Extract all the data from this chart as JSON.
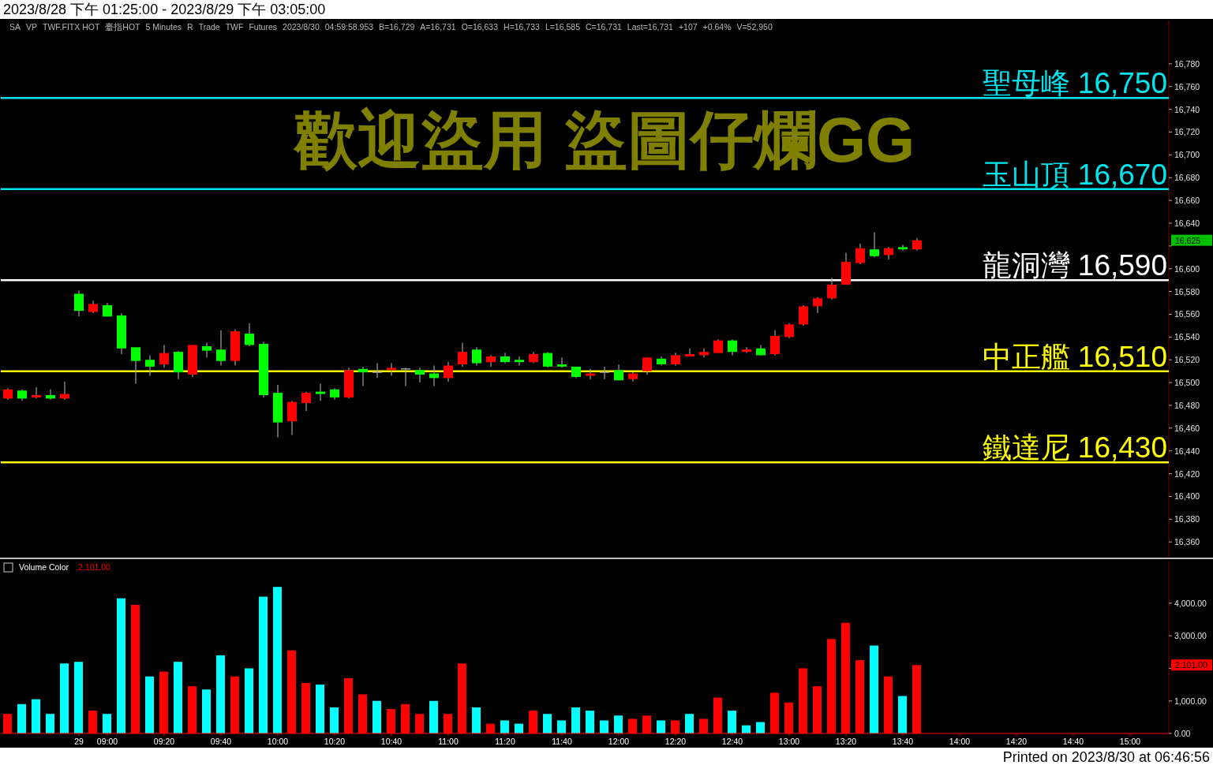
{
  "chart_data": [
    {
      "type": "candlestick",
      "title": "2023/8/28 下午 01:25:00 - 2023/8/29 下午 03:05:00",
      "ohlc": [
        [
          16486,
          16495,
          16485,
          16494
        ],
        [
          16493,
          16494,
          16484,
          16486
        ],
        [
          16487,
          16496,
          16486,
          16489
        ],
        [
          16489,
          16494,
          16485,
          16486
        ],
        [
          16486,
          16501,
          16485,
          16490
        ],
        [
          16578,
          16581,
          16558,
          16563
        ],
        [
          16562,
          16572,
          16561,
          16569
        ],
        [
          16568,
          16570,
          16558,
          16558
        ],
        [
          16559,
          16561,
          16525,
          16530
        ],
        [
          16531,
          16531,
          16499,
          16519
        ],
        [
          16520,
          16524,
          16506,
          16514
        ],
        [
          16516,
          16533,
          16513,
          16526
        ],
        [
          16527,
          16528,
          16503,
          16509
        ],
        [
          16507,
          16533,
          16505,
          16533
        ],
        [
          16532,
          16535,
          16522,
          16528
        ],
        [
          16529,
          16546,
          16515,
          16519
        ],
        [
          16519,
          16547,
          16515,
          16545
        ],
        [
          16543,
          16552,
          16532,
          16533
        ],
        [
          16534,
          16536,
          16487,
          16489
        ],
        [
          16491,
          16498,
          16452,
          16465
        ],
        [
          16466,
          16484,
          16454,
          16483
        ],
        [
          16482,
          16492,
          16475,
          16491
        ],
        [
          16492,
          16499,
          16484,
          16490
        ],
        [
          16494,
          16495,
          16485,
          16487
        ],
        [
          16487,
          16513,
          16486,
          16511
        ],
        [
          16512,
          16514,
          16497,
          16509
        ],
        [
          16509,
          16517,
          16504,
          16509
        ],
        [
          16511,
          16517,
          16506,
          16513
        ],
        [
          16512,
          16513,
          16497,
          16512
        ],
        [
          16511,
          16513,
          16500,
          16507
        ],
        [
          16508,
          16515,
          16497,
          16504
        ],
        [
          16504,
          16518,
          16501,
          16515
        ],
        [
          16516,
          16535,
          16514,
          16527
        ],
        [
          16529,
          16531,
          16515,
          16517
        ],
        [
          16518,
          16524,
          16514,
          16523
        ],
        [
          16523,
          16526,
          16517,
          16518
        ],
        [
          16520,
          16523,
          16515,
          16518
        ],
        [
          16518,
          16527,
          16517,
          16525
        ],
        [
          16526,
          16527,
          16513,
          16514
        ],
        [
          16516,
          16522,
          16513,
          16514
        ],
        [
          16514,
          16514,
          16504,
          16505
        ],
        [
          16506,
          16512,
          16503,
          16508
        ],
        [
          16509,
          16514,
          16503,
          16509
        ],
        [
          16511,
          16516,
          16502,
          16502
        ],
        [
          16503,
          16509,
          16501,
          16508
        ],
        [
          16510,
          16522,
          16507,
          16522
        ],
        [
          16521,
          16523,
          16515,
          16516
        ],
        [
          16516,
          16526,
          16515,
          16524
        ],
        [
          16523,
          16530,
          16523,
          16525
        ],
        [
          16524,
          16530,
          16522,
          16527
        ],
        [
          16526,
          16538,
          16526,
          16537
        ],
        [
          16537,
          16538,
          16524,
          16527
        ],
        [
          16527,
          16531,
          16526,
          16529
        ],
        [
          16530,
          16533,
          16524,
          16524
        ],
        [
          16525,
          16546,
          16524,
          16541
        ],
        [
          16540,
          16552,
          16539,
          16551
        ],
        [
          16551,
          16568,
          16550,
          16567
        ],
        [
          16567,
          16575,
          16561,
          16574
        ],
        [
          16574,
          16592,
          16573,
          16586
        ],
        [
          16586,
          16614,
          16586,
          16606
        ],
        [
          16605,
          16622,
          16604,
          16618
        ],
        [
          16617,
          16632,
          16610,
          16611
        ],
        [
          16612,
          16619,
          16608,
          16618
        ],
        [
          16619,
          16621,
          16616,
          16617
        ],
        [
          16617,
          16627,
          16616,
          16625
        ],
        null,
        null,
        null,
        null,
        null,
        null,
        null,
        null,
        null,
        null,
        null,
        null,
        null,
        null,
        null,
        null,
        null
      ],
      "colors": [
        "#ff0000",
        "#00ff00",
        "#ff0000",
        "#00ff00",
        "#ff0000",
        "#00ff00",
        "#ff0000",
        "#00ff00",
        "#00ff00",
        "#00ff00",
        "#00ff00",
        "#ff0000",
        "#00ff00",
        "#ff0000",
        "#00ff00",
        "#00ff00",
        "#ff0000",
        "#00ff00",
        "#00ff00",
        "#00ff00",
        "#ff0000",
        "#ff0000",
        "#00ff00",
        "#00ff00",
        "#ff0000",
        "#00ff00",
        "#999999",
        "#ff0000",
        "#999999",
        "#00ff00",
        "#00ff00",
        "#ff0000",
        "#ff0000",
        "#00ff00",
        "#ff0000",
        "#00ff00",
        "#00ff00",
        "#ff0000",
        "#00ff00",
        "#00ff00",
        "#00ff00",
        "#ff0000",
        "#999999",
        "#00ff00",
        "#ff0000",
        "#ff0000",
        "#00ff00",
        "#ff0000",
        "#ff0000",
        "#ff0000",
        "#ff0000",
        "#00ff00",
        "#ff0000",
        "#00ff00",
        "#ff0000",
        "#ff0000",
        "#ff0000",
        "#ff0000",
        "#ff0000",
        "#ff0000",
        "#ff0000",
        "#00ff00",
        "#ff0000",
        "#00ff00",
        "#ff0000",
        null,
        null,
        null,
        null,
        null,
        null,
        null,
        null,
        null,
        null,
        null,
        null,
        null,
        null,
        null,
        null,
        null
      ],
      "ylim": [
        16347,
        16818
      ],
      "yticks": [
        {
          "value": 16360,
          "label": "16,360"
        },
        {
          "value": 16380,
          "label": "16,380"
        },
        {
          "value": 16400,
          "label": "16,400"
        },
        {
          "value": 16420,
          "label": "16,420"
        },
        {
          "value": 16440,
          "label": "16,440"
        },
        {
          "value": 16460,
          "label": "16,460"
        },
        {
          "value": 16480,
          "label": "16,480"
        },
        {
          "value": 16500,
          "label": "16,500"
        },
        {
          "value": 16520,
          "label": "16,520"
        },
        {
          "value": 16540,
          "label": "16,540"
        },
        {
          "value": 16560,
          "label": "16,560"
        },
        {
          "value": 16580,
          "label": "16,580"
        },
        {
          "value": 16600,
          "label": "16,600"
        },
        {
          "value": 16620,
          "label": null
        },
        {
          "value": 16640,
          "label": "16,640"
        },
        {
          "value": 16660,
          "label": "16,660"
        },
        {
          "value": 16680,
          "label": "16,680"
        },
        {
          "value": 16700,
          "label": "16,700"
        },
        {
          "value": 16720,
          "label": "16,720"
        },
        {
          "value": 16740,
          "label": "16,740"
        },
        {
          "value": 16760,
          "label": "16,760"
        },
        {
          "value": 16780,
          "label": "16,780"
        }
      ],
      "tick_labels": "y",
      "ref_lines": [
        {
          "axis": "y",
          "value": 16750,
          "label": "聖母峰 16,750",
          "color": "#00e5ee"
        },
        {
          "axis": "y",
          "value": 16670,
          "label": "玉山頂 16,670",
          "color": "#00e5ee"
        },
        {
          "axis": "y",
          "value": 16590,
          "label": "龍洞灣 16,590",
          "color": "#ffffff"
        },
        {
          "axis": "y",
          "value": 16510,
          "label": "中正艦 16,510",
          "color": "#ffff00"
        },
        {
          "axis": "y",
          "value": 16430,
          "label": "鐵達尼 16,430",
          "color": "#ffff00"
        }
      ],
      "annotations": [
        "歡迎盜用 盜圖仔爛GG",
        "SA",
        "VP",
        "TWF.FITX HOT",
        "臺指HOT",
        "5 Minutes",
        "R",
        "Trade",
        "TWF",
        "Futures",
        "2023/8/30",
        "04:59:58.953",
        "B=16,729",
        "A=16,731",
        "O=16,633",
        "H=16,733",
        "L=16,585",
        "C=16,731",
        "Last=16,731",
        "+107",
        "+0.64%",
        "V=52,950",
        "16,625"
      ]
    },
    {
      "type": "bar",
      "title": "Volume Color",
      "categories": [
        null,
        null,
        null,
        null,
        null,
        "29",
        null,
        "09:00",
        null,
        null,
        null,
        "09:20",
        null,
        null,
        null,
        "09:40",
        null,
        null,
        null,
        "10:00",
        null,
        null,
        null,
        "10:20",
        null,
        null,
        null,
        "10:40",
        null,
        null,
        null,
        "11:00",
        null,
        null,
        null,
        "11:20",
        null,
        null,
        null,
        "11:40",
        null,
        null,
        null,
        "12:00",
        null,
        null,
        null,
        "12:20",
        null,
        null,
        null,
        "12:40",
        null,
        null,
        null,
        "13:00",
        null,
        null,
        null,
        "13:20",
        null,
        null,
        null,
        "13:40",
        null,
        null,
        null,
        "14:00",
        null,
        null,
        null,
        "14:20",
        null,
        null,
        null,
        "14:40",
        null,
        null,
        null,
        "15:00",
        null,
        null
      ],
      "values": [
        600,
        900,
        1050,
        600,
        2150,
        2200,
        700,
        600,
        4150,
        3950,
        1750,
        1900,
        2200,
        1450,
        1350,
        2400,
        1750,
        2000,
        4200,
        4500,
        2550,
        1550,
        1500,
        800,
        1700,
        1200,
        1000,
        750,
        900,
        600,
        1000,
        600,
        2150,
        800,
        300,
        400,
        300,
        700,
        600,
        400,
        800,
        700,
        400,
        550,
        450,
        550,
        400,
        400,
        600,
        450,
        1100,
        700,
        250,
        350,
        1250,
        950,
        2000,
        1450,
        2900,
        3400,
        2250,
        2700,
        1750,
        1150,
        2101,
        null,
        null,
        null,
        null,
        null,
        null,
        null,
        null,
        null,
        null,
        null,
        null,
        null,
        null,
        null,
        null,
        null
      ],
      "colors": [
        "#ff0000",
        "#00ffff",
        "#00ffff",
        "#00ffff",
        "#00ffff",
        "#00ffff",
        "#ff0000",
        "#00ffff",
        "#00ffff",
        "#ff0000",
        "#00ffff",
        "#ff0000",
        "#00ffff",
        "#ff0000",
        "#00ffff",
        "#00ffff",
        "#ff0000",
        "#00ffff",
        "#00ffff",
        "#00ffff",
        "#ff0000",
        "#ff0000",
        "#00ffff",
        "#00ffff",
        "#ff0000",
        "#ff0000",
        "#00ffff",
        "#ff0000",
        "#ff0000",
        "#ff0000",
        "#00ffff",
        "#ff0000",
        "#ff0000",
        "#00ffff",
        "#ff0000",
        "#00ffff",
        "#00ffff",
        "#ff0000",
        "#00ffff",
        "#00ffff",
        "#00ffff",
        "#00ffff",
        "#00ffff",
        "#00ffff",
        "#ff0000",
        "#ff0000",
        "#00ffff",
        "#ff0000",
        "#00ffff",
        "#ff0000",
        "#ff0000",
        "#00ffff",
        "#00ffff",
        "#00ffff",
        "#ff0000",
        "#ff0000",
        "#ff0000",
        "#ff0000",
        "#ff0000",
        "#ff0000",
        "#ff0000",
        "#00ffff",
        "#ff0000",
        "#00ffff",
        "#ff0000",
        null,
        null,
        null,
        null,
        null,
        null,
        null,
        null,
        null,
        null,
        null,
        null,
        null,
        null,
        null,
        null,
        null
      ],
      "ylim": [
        0,
        5280
      ],
      "yticks": [
        {
          "value": 0,
          "label": "0.00"
        },
        {
          "value": 1000,
          "label": "1,000.00"
        },
        {
          "value": 2000,
          "label": null
        },
        {
          "value": 3000,
          "label": "3,000.00"
        },
        {
          "value": 4000,
          "label": "4,000.00"
        }
      ],
      "annotations": [
        "2,101.00",
        "2,101.00",
        "Printed on 2023/8/30 at 06:46:56"
      ]
    }
  ]
}
